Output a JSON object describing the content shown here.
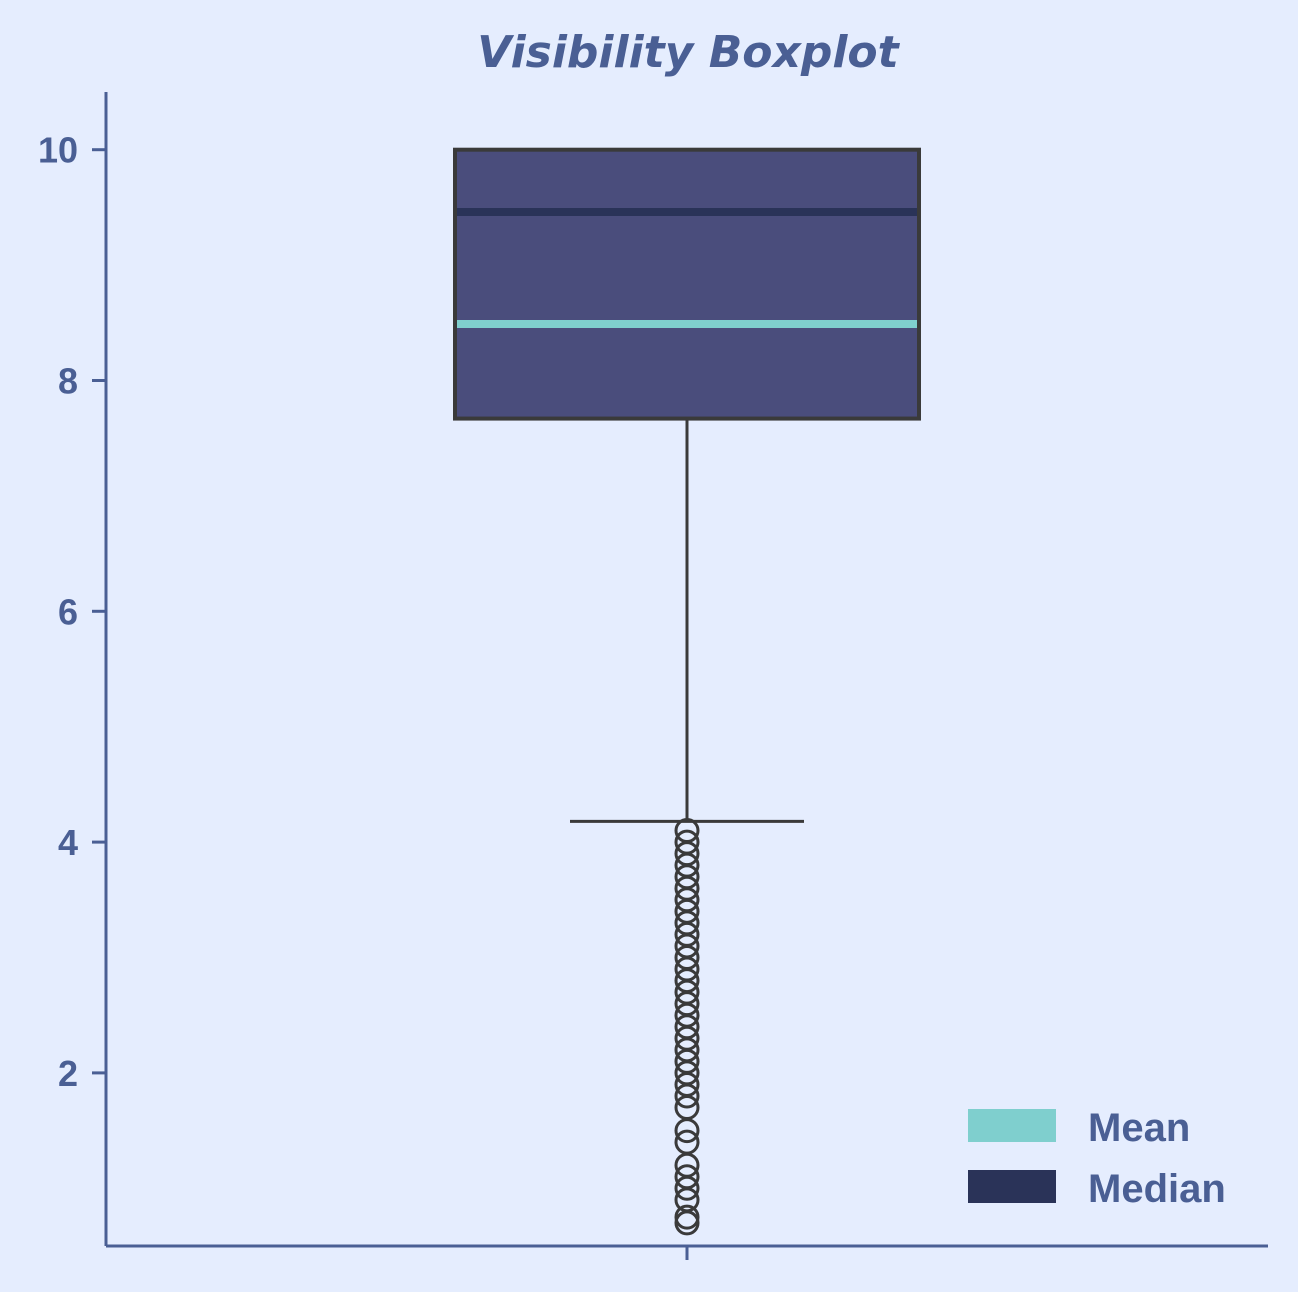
{
  "chart_data": {
    "type": "box",
    "title": "Visibility Boxplot",
    "xlabel": "",
    "ylabel": "",
    "ylim": [
      0.5,
      10.5
    ],
    "yticks": [
      "2",
      "4",
      "6",
      "8",
      "10"
    ],
    "grid": false,
    "legend_position": "bottom-right",
    "legend": [
      {
        "name": "Mean",
        "color": "#7fcfce"
      },
      {
        "name": "Median",
        "color": "#2a3358"
      }
    ],
    "box": {
      "q1": 7.67,
      "median": 9.46,
      "q3": 10.0,
      "mean": 8.49,
      "whisker_low": 4.18,
      "whisker_high": 10.0,
      "outliers": [
        4.1,
        4.0,
        3.9,
        3.8,
        3.7,
        3.6,
        3.5,
        3.4,
        3.3,
        3.2,
        3.1,
        3.0,
        2.9,
        2.8,
        2.7,
        2.6,
        2.5,
        2.4,
        2.3,
        2.2,
        2.1,
        2.0,
        1.9,
        1.8,
        1.7,
        1.5,
        1.4,
        1.2,
        1.1,
        1.0,
        0.9,
        0.75,
        0.7
      ]
    },
    "colors": {
      "box_fill": "#4a4d7c",
      "box_edge": "#3a3a3a",
      "mean_line": "#7fcfce",
      "median_line": "#2a3358",
      "axis": "#4a5f94",
      "text": "#4a5f94"
    }
  }
}
